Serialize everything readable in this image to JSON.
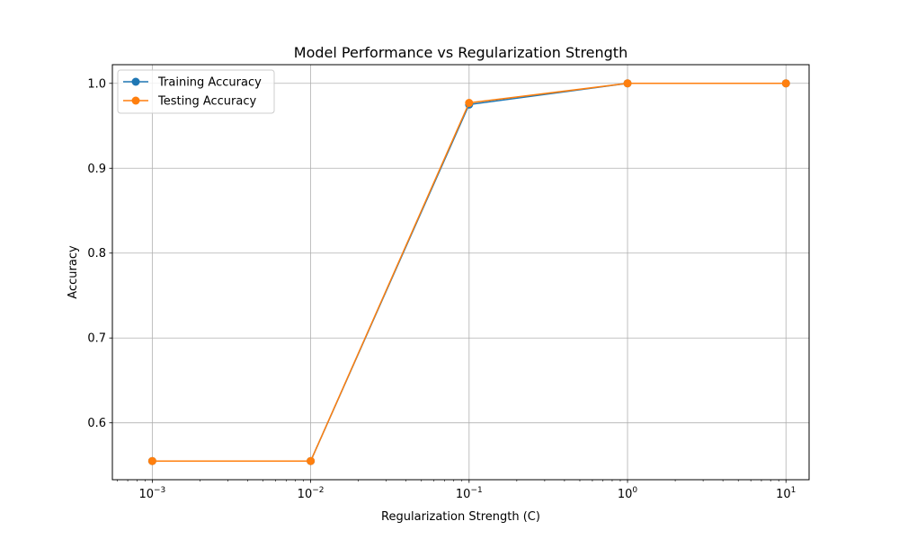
{
  "chart_data": {
    "type": "line",
    "title": "Model Performance vs Regularization Strength",
    "xlabel": "Regularization Strength (C)",
    "ylabel": "Accuracy",
    "xscale": "log",
    "x": [
      0.001,
      0.01,
      0.1,
      1,
      10
    ],
    "xlim": [
      0.00056,
      14
    ],
    "ylim": [
      0.533,
      1.022
    ],
    "x_ticks": [
      {
        "value": 0.001,
        "base": "10",
        "exp": "−3"
      },
      {
        "value": 0.01,
        "base": "10",
        "exp": "−2"
      },
      {
        "value": 0.1,
        "base": "10",
        "exp": "−1"
      },
      {
        "value": 1,
        "base": "10",
        "exp": "0"
      },
      {
        "value": 10,
        "base": "10",
        "exp": "1"
      }
    ],
    "y_ticks": [
      {
        "value": 0.6,
        "label": "0.6"
      },
      {
        "value": 0.7,
        "label": "0.7"
      },
      {
        "value": 0.8,
        "label": "0.8"
      },
      {
        "value": 0.9,
        "label": "0.9"
      },
      {
        "value": 1.0,
        "label": "1.0"
      }
    ],
    "grid": true,
    "legend_position": "top-left",
    "series": [
      {
        "name": "Training Accuracy",
        "color": "#1f77b4",
        "values": [
          0.555,
          0.555,
          0.975,
          1.0,
          1.0
        ]
      },
      {
        "name": "Testing Accuracy",
        "color": "#ff7f0e",
        "values": [
          0.555,
          0.555,
          0.977,
          1.0,
          1.0
        ]
      }
    ]
  }
}
